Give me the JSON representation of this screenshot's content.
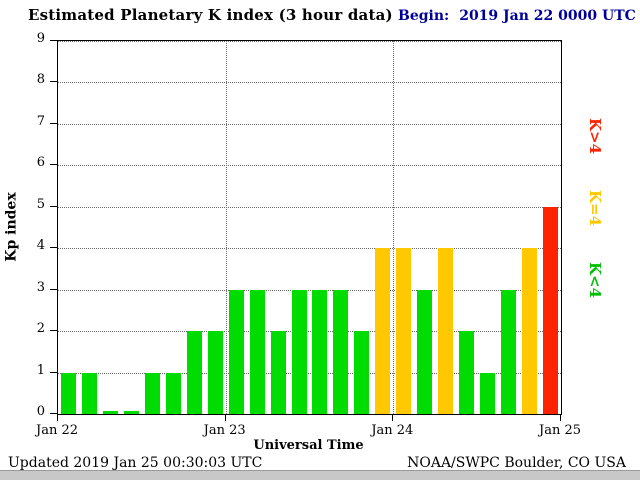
{
  "title": "Estimated Planetary K index (3 hour data)",
  "begin": {
    "label": "Begin:",
    "value": "2019 Jan 22 0000 UTC"
  },
  "footer": {
    "updated": "Updated 2019 Jan 25 00:30:03 UTC",
    "source": "NOAA/SWPC Boulder, CO USA"
  },
  "colors": {
    "green": "#00DB00",
    "yellow": "#FFC800",
    "red": "#FF2200",
    "axis": "#000000",
    "begin_text": "#000099",
    "grid": "#6b6b6b"
  },
  "chart_data": {
    "type": "bar",
    "title": "Estimated Planetary K index (3 hour data)",
    "xlabel": "Universal Time",
    "ylabel": "Kp index",
    "ylim": [
      0,
      9
    ],
    "y_ticks": [
      0,
      1,
      2,
      3,
      4,
      5,
      6,
      7,
      8,
      9
    ],
    "x_tick_labels": [
      "Jan 22",
      "Jan 23",
      "Jan 24",
      "Jan 25"
    ],
    "interval_hours": 3,
    "bars_per_day": 8,
    "values": [
      1,
      1,
      0,
      0,
      1,
      1,
      2,
      2,
      3,
      3,
      2,
      3,
      3,
      3,
      2,
      4,
      4,
      3,
      4,
      2,
      1,
      3,
      4,
      5
    ],
    "color_rule": {
      "green": "K<4",
      "yellow": "K=4",
      "red": "K>4"
    },
    "legend": [
      {
        "label": "K>4",
        "color": "#FF2200"
      },
      {
        "label": "K=4",
        "color": "#FFC800"
      },
      {
        "label": "K<4",
        "color": "#00C000"
      }
    ],
    "legend_position": "right",
    "grid": "dotted horizontal lines at each Kp integer; dotted vertical lines at day boundaries"
  }
}
